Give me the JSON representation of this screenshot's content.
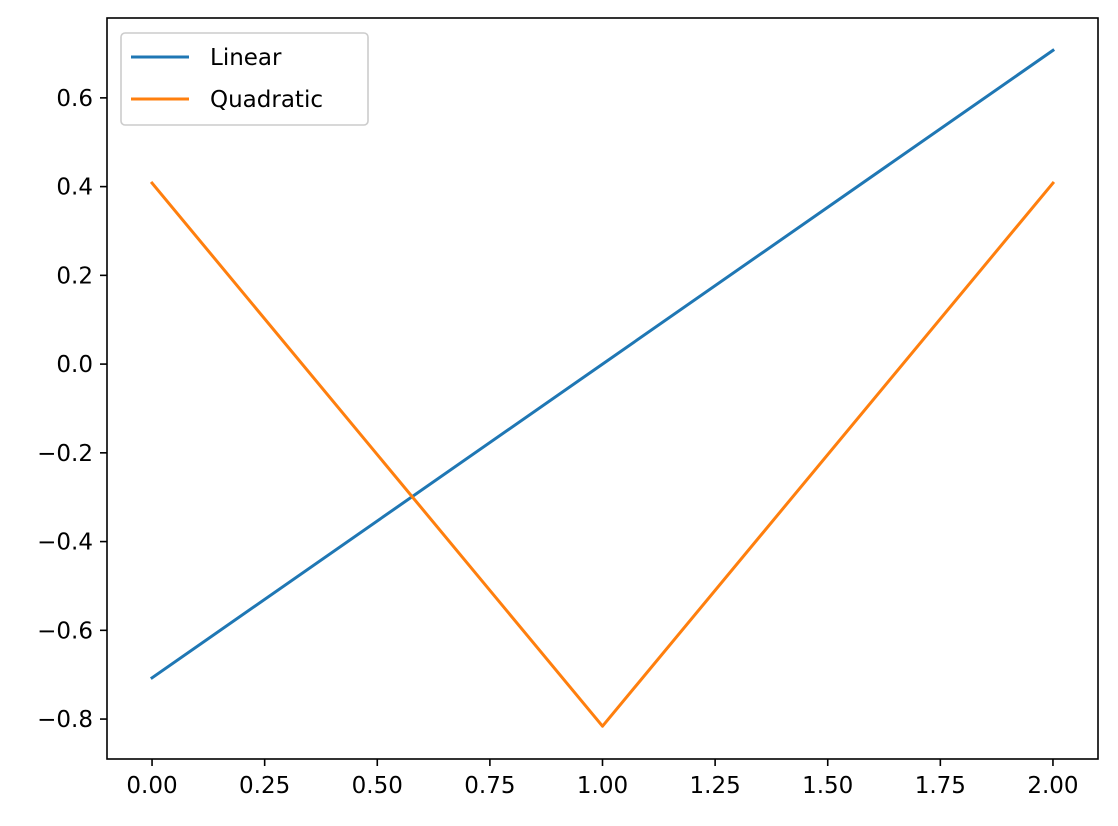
{
  "chart_data": {
    "type": "line",
    "title": "",
    "xlabel": "",
    "ylabel": "",
    "xlim": [
      -0.1,
      2.1
    ],
    "ylim": [
      -0.89,
      0.78
    ],
    "x_ticks": [
      0.0,
      0.25,
      0.5,
      0.75,
      1.0,
      1.25,
      1.5,
      1.75,
      2.0
    ],
    "x_tick_labels": [
      "0.00",
      "0.25",
      "0.50",
      "0.75",
      "1.00",
      "1.25",
      "1.50",
      "1.75",
      "2.00"
    ],
    "y_ticks": [
      0.6,
      0.4,
      0.2,
      0.0,
      -0.2,
      -0.4,
      -0.6,
      -0.8
    ],
    "y_tick_labels": [
      "0.6",
      "0.4",
      "0.2",
      "0.0",
      "−0.2",
      "−0.4",
      "−0.6",
      "−0.8"
    ],
    "grid": false,
    "legend_position": "top-left",
    "series": [
      {
        "name": "Linear",
        "color": "#1f77b4",
        "x": [
          0.0,
          1.0,
          2.0
        ],
        "y": [
          -0.707,
          0.0,
          0.707
        ]
      },
      {
        "name": "Quadratic",
        "color": "#ff7f0e",
        "x": [
          0.0,
          1.0,
          2.0
        ],
        "y": [
          0.408,
          -0.816,
          0.408
        ]
      }
    ]
  }
}
